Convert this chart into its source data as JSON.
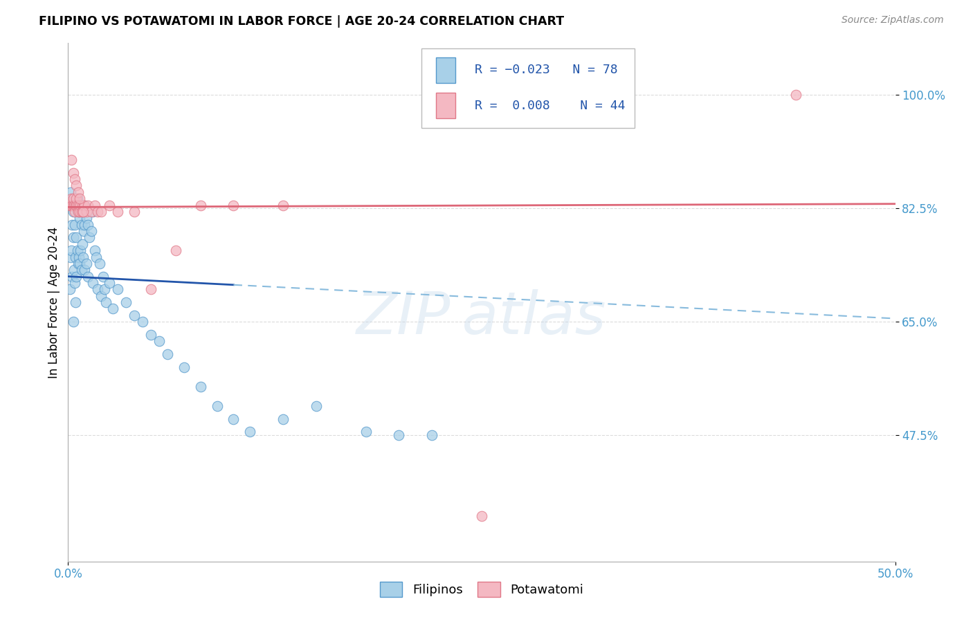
{
  "title": "FILIPINO VS POTAWATOMI IN LABOR FORCE | AGE 20-24 CORRELATION CHART",
  "source": "Source: ZipAtlas.com",
  "ylabel": "In Labor Force | Age 20-24",
  "ytick_vals": [
    47.5,
    65.0,
    82.5,
    100.0
  ],
  "ytick_labels": [
    "47.5%",
    "65.0%",
    "82.5%",
    "100.0%"
  ],
  "xmin": 0.0,
  "xmax": 50.0,
  "ymin": 28.0,
  "ymax": 108.0,
  "legend_R_blue": "-0.023",
  "legend_N_blue": "78",
  "legend_R_pink": "0.008",
  "legend_N_pink": "44",
  "color_blue_fill": "#a8d0e8",
  "color_blue_edge": "#5599cc",
  "color_pink_fill": "#f4b8c2",
  "color_pink_edge": "#e07888",
  "color_trend_blue_solid": "#2255aa",
  "color_trend_blue_dash": "#88bbdd",
  "color_trend_pink": "#dd6677",
  "color_axis_labels": "#4499cc",
  "color_grid": "#cccccc",
  "fil_trend_x0": 0.0,
  "fil_trend_y0": 72.0,
  "fil_trend_x1": 50.0,
  "fil_trend_y1": 65.5,
  "fil_solid_end_x": 10.0,
  "pot_trend_y0": 82.7,
  "pot_trend_y1": 83.2,
  "filipinos_x": [
    0.1,
    0.15,
    0.2,
    0.2,
    0.25,
    0.25,
    0.3,
    0.3,
    0.3,
    0.35,
    0.35,
    0.4,
    0.4,
    0.45,
    0.45,
    0.5,
    0.5,
    0.5,
    0.55,
    0.55,
    0.6,
    0.6,
    0.65,
    0.65,
    0.7,
    0.7,
    0.75,
    0.75,
    0.8,
    0.8,
    0.85,
    0.9,
    0.9,
    0.95,
    1.0,
    1.0,
    1.0,
    1.1,
    1.1,
    1.2,
    1.2,
    1.3,
    1.4,
    1.5,
    1.5,
    1.6,
    1.7,
    1.8,
    1.9,
    2.0,
    2.1,
    2.2,
    2.3,
    2.5,
    2.7,
    3.0,
    3.5,
    4.0,
    4.5,
    5.0,
    5.5,
    6.0,
    7.0,
    8.0,
    9.0,
    10.0,
    11.0,
    13.0,
    15.0,
    18.0,
    20.0,
    22.0,
    0.15,
    0.25,
    0.35,
    0.45,
    0.55,
    0.65
  ],
  "filipinos_y": [
    70,
    75,
    83,
    76,
    80,
    72,
    82,
    78,
    65,
    83,
    73,
    80,
    71,
    75,
    68,
    83,
    78,
    72,
    83,
    76,
    82,
    74,
    83,
    75,
    81,
    74,
    83,
    76,
    80,
    73,
    77,
    82,
    75,
    79,
    83,
    80,
    73,
    81,
    74,
    80,
    72,
    78,
    79,
    82,
    71,
    76,
    75,
    70,
    74,
    69,
    72,
    70,
    68,
    71,
    67,
    70,
    68,
    66,
    65,
    63,
    62,
    60,
    58,
    55,
    52,
    50,
    48,
    50,
    52,
    48,
    47.5,
    47.5,
    85,
    83,
    84,
    83,
    84,
    82
  ],
  "potawatomi_x": [
    0.1,
    0.15,
    0.2,
    0.25,
    0.3,
    0.3,
    0.35,
    0.4,
    0.45,
    0.5,
    0.5,
    0.55,
    0.6,
    0.65,
    0.7,
    0.75,
    0.8,
    0.85,
    0.9,
    0.95,
    1.0,
    1.1,
    1.2,
    1.4,
    1.6,
    1.8,
    2.0,
    2.5,
    3.0,
    4.0,
    5.0,
    6.5,
    8.0,
    10.0,
    13.0,
    0.2,
    0.3,
    0.4,
    0.5,
    0.6,
    0.7,
    0.9,
    44.0,
    25.0
  ],
  "potawatomi_y": [
    83,
    83,
    84,
    83,
    83,
    84,
    83,
    82,
    83,
    83,
    84,
    83,
    82,
    83,
    82,
    83,
    82,
    83,
    82,
    83,
    83,
    82,
    83,
    82,
    83,
    82,
    82,
    83,
    82,
    82,
    70,
    76,
    83,
    83,
    83,
    90,
    88,
    87,
    86,
    85,
    84,
    82,
    100,
    35
  ]
}
